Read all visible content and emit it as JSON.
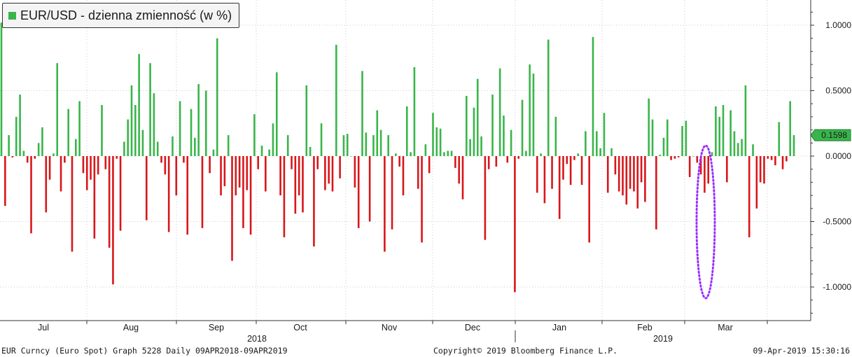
{
  "chart_data": {
    "type": "bar",
    "title": "EUR/USD - dzienna zmienność (w %)",
    "series": [
      {
        "name": "EUR/USD - dzienna zmienność (w %)"
      }
    ],
    "values": [
      1.02,
      -0.38,
      0.16,
      -0.01,
      0.3,
      0.47,
      0.04,
      -0.05,
      -0.59,
      -0.02,
      0.1,
      0.22,
      -0.43,
      -0.18,
      0.02,
      0.71,
      -0.27,
      -0.05,
      0.36,
      -0.73,
      0.13,
      0.42,
      -0.13,
      -0.26,
      -0.18,
      -0.63,
      -0.14,
      0.39,
      -0.1,
      -0.7,
      -0.98,
      -0.02,
      -0.57,
      0.11,
      0.28,
      0.54,
      0.39,
      0.78,
      0.2,
      -0.49,
      0.71,
      0.48,
      0.11,
      -0.05,
      -0.14,
      -0.58,
      0.15,
      -0.3,
      0.42,
      -0.05,
      -0.6,
      0.36,
      0.14,
      0.55,
      -0.55,
      0.5,
      -0.13,
      0.05,
      0.9,
      -0.3,
      -0.23,
      0.16,
      -0.8,
      -0.3,
      -0.24,
      -0.55,
      -0.26,
      -0.6,
      0.32,
      -0.1,
      0.08,
      -0.27,
      0.05,
      0.25,
      0.64,
      -0.3,
      -0.62,
      0.16,
      -0.1,
      -0.44,
      -0.3,
      -0.43,
      0.54,
      0.07,
      -0.69,
      -0.1,
      0.25,
      -0.26,
      -0.21,
      -0.27,
      0.85,
      -0.17,
      0.16,
      0.17,
      0.0,
      -0.24,
      -0.55,
      0.65,
      0.18,
      -0.5,
      0.16,
      0.35,
      0.2,
      -0.73,
      0.16,
      -0.56,
      0.02,
      -0.08,
      -0.3,
      0.38,
      0.03,
      0.68,
      -0.25,
      -0.66,
      0.09,
      -0.13,
      0.33,
      0.22,
      0.21,
      0.03,
      0.04,
      0.04,
      -0.09,
      -0.21,
      -0.33,
      0.46,
      0.13,
      0.37,
      0.59,
      0.15,
      -0.64,
      -0.1,
      0.47,
      -0.08,
      0.67,
      0.31,
      -0.05,
      0.2,
      -1.04,
      -0.02,
      0.43,
      0.04,
      0.7,
      0.63,
      -0.28,
      0.02,
      -0.36,
      0.89,
      -0.25,
      0.3,
      -0.48,
      -0.18,
      -0.06,
      -0.22,
      -0.03,
      0.02,
      -0.22,
      0.19,
      -0.66,
      0.91,
      0.19,
      0.06,
      0.33,
      -0.28,
      0.06,
      -0.14,
      -0.27,
      -0.3,
      -0.37,
      -0.25,
      -0.27,
      -0.4,
      -0.2,
      -0.35,
      0.44,
      0.28,
      -0.56,
      0.01,
      0.14,
      0.28,
      -0.03,
      -0.02,
      -0.01,
      0.23,
      0.27,
      -0.16,
      0.0,
      -0.05,
      -0.14,
      -0.28,
      -0.21,
      0.03,
      0.38,
      0.3,
      0.39,
      -0.2,
      0.35,
      0.19,
      0.1,
      0.13,
      0.54,
      -0.62,
      0.09,
      -0.4,
      -0.2,
      -0.21,
      -0.02,
      -0.03,
      -0.07,
      0.26,
      -0.1,
      -0.04,
      0.42,
      0.16
    ],
    "colors": {
      "positive": "#39b54a",
      "negative": "#d8161a"
    },
    "ylim": [
      -1.25,
      1.18
    ],
    "yticks": [
      {
        "value": 1.0,
        "label": "1.0000"
      },
      {
        "value": 0.5,
        "label": "0.5000"
      },
      {
        "value": 0.0,
        "label": "0.0000"
      },
      {
        "value": -0.5,
        "label": "-0.5000"
      },
      {
        "value": -1.0,
        "label": "-1.0000"
      }
    ],
    "last_value": {
      "value": 0.1598,
      "label": "0.1598",
      "color": "#39b54a"
    },
    "months": [
      "Jul",
      "Aug",
      "Sep",
      "Oct",
      "Nov",
      "Dec",
      "Jan",
      "Feb",
      "Mar"
    ],
    "years": [
      "2018",
      "2019"
    ],
    "annotation": {
      "type": "dotted-ellipse",
      "color": "#9b30ff",
      "period": "Feb–Mar 2019"
    }
  },
  "footer": {
    "left": "EUR Curncy (Euro Spot) Graph 5228  Daily 09APR2018-09APR2019",
    "center": "Copyright© 2019 Bloomberg Finance L.P.",
    "right": "09-Apr-2019 15:30:16"
  }
}
